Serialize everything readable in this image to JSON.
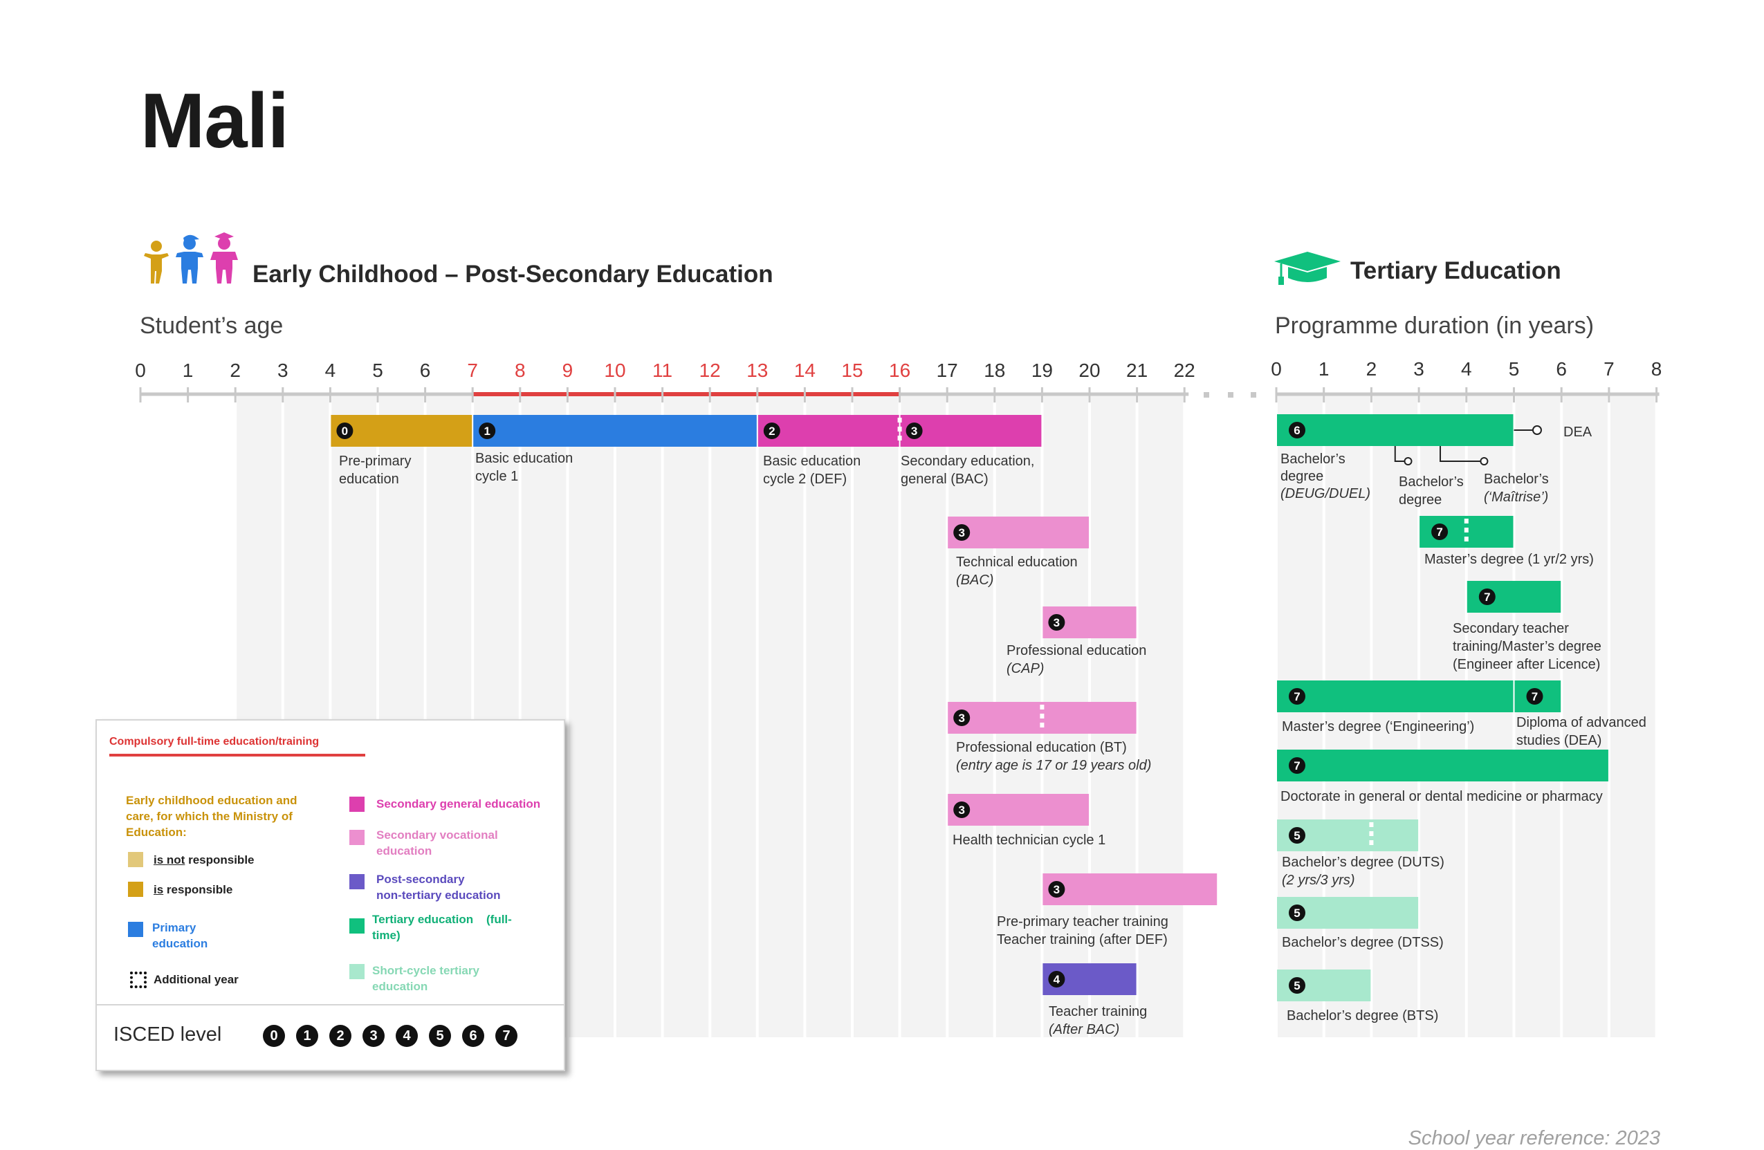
{
  "title": "Mali",
  "left_section": {
    "heading": "Early Childhood – Post-Secondary Education",
    "axis_title": "Student’s age",
    "ticks": [
      "0",
      "1",
      "2",
      "3",
      "4",
      "5",
      "6",
      "7",
      "8",
      "9",
      "10",
      "11",
      "12",
      "13",
      "14",
      "15",
      "16",
      "17",
      "18",
      "19",
      "20",
      "21",
      "22"
    ],
    "compulsory_range": [
      7,
      16
    ]
  },
  "right_section": {
    "heading": "Tertiary Education",
    "axis_title": "Programme duration (in years)",
    "ticks": [
      "0",
      "1",
      "2",
      "3",
      "4",
      "5",
      "6",
      "7",
      "8"
    ]
  },
  "colors": {
    "ecec_not_responsible": "#e2c87a",
    "ecec_responsible": "#d4a017",
    "primary": "#2b7de0",
    "secondary_general": "#dd3fae",
    "secondary_vocational": "#ec8fcf",
    "post_secondary": "#6b5ac8",
    "tertiary": "#10c07e",
    "short_cycle_tertiary": "#a8e8cd",
    "compulsory": "#e04040"
  },
  "chart_data": {
    "type": "table",
    "left_programmes": [
      {
        "id": "pre-primary",
        "isced": "0",
        "start": 4,
        "end": 7,
        "row": 0,
        "color": "ecec_responsible",
        "label": [
          "Pre-primary",
          "education"
        ]
      },
      {
        "id": "basic-cycle-1",
        "isced": "1",
        "start": 7,
        "end": 13,
        "row": 0,
        "color": "primary",
        "label": [
          "Basic education",
          "cycle 1"
        ]
      },
      {
        "id": "basic-cycle-2",
        "isced": "2",
        "start": 13,
        "end": 16,
        "row": 0,
        "color": "secondary_general",
        "label": [
          "Basic education",
          "cycle 2 (DEF)"
        ]
      },
      {
        "id": "secondary-general",
        "isced": "3",
        "start": 16,
        "end": 19,
        "row": 0,
        "color": "secondary_general",
        "label": [
          "Secondary education,",
          "general (BAC)"
        ]
      },
      {
        "id": "technical",
        "isced": "3",
        "start": 17,
        "end": 20,
        "row": 1,
        "color": "secondary_vocational",
        "label": [
          "Technical education",
          "(BAC)"
        ]
      },
      {
        "id": "professional-cap",
        "isced": "3",
        "start": 19,
        "end": 21,
        "row": 2,
        "color": "secondary_vocational",
        "label": [
          "Professional education",
          "(CAP)"
        ]
      },
      {
        "id": "professional-bt",
        "isced": "3",
        "start": 17,
        "end": 21,
        "row": 3,
        "color": "secondary_vocational",
        "additional_year_at": 19,
        "label": [
          "Professional education (BT)",
          "(entry age is 17 or 19 years old)"
        ]
      },
      {
        "id": "health-technician",
        "isced": "3",
        "start": 17,
        "end": 20,
        "row": 4,
        "color": "secondary_vocational",
        "label": [
          "Health technician cycle 1"
        ]
      },
      {
        "id": "teacher-training-def",
        "isced": "3",
        "start": 19,
        "end": 22.7,
        "row": 5,
        "color": "secondary_vocational",
        "label": [
          "Pre-primary teacher training",
          "Teacher training (after DEF)"
        ]
      },
      {
        "id": "teacher-training-bac",
        "isced": "4",
        "start": 19,
        "end": 21,
        "row": 6,
        "color": "post_secondary",
        "label": [
          "Teacher training",
          "(After BAC)"
        ]
      }
    ],
    "tertiary_programmes": [
      {
        "id": "bachelor-deug",
        "isced": "6",
        "start": 0,
        "end": 5,
        "row": 0,
        "color": "tertiary",
        "label": [
          "Bachelor’s",
          "degree",
          "(DEUG/DUEL)"
        ]
      },
      {
        "id": "masters-1-2",
        "isced": "7",
        "start": 3,
        "end": 5,
        "row": 1,
        "color": "tertiary",
        "additional_year_at": 4,
        "label": [
          "Master’s degree (1 yr/2 yrs)"
        ]
      },
      {
        "id": "secondary-teacher",
        "isced": "7",
        "start": 4,
        "end": 6,
        "row": 2,
        "color": "tertiary",
        "label": [
          "Secondary teacher",
          "training/Master’s degree",
          "(Engineer after Licence)"
        ]
      },
      {
        "id": "masters-engineering",
        "isced": "7",
        "start": 0,
        "end": 5,
        "row": 3,
        "color": "tertiary",
        "label": [
          "Master’s degree (‘Engineering’)"
        ]
      },
      {
        "id": "dea",
        "isced": "7",
        "start": 5,
        "end": 6,
        "row": 3,
        "color": "tertiary",
        "label": [
          "Diploma of advanced",
          "studies (DEA)"
        ]
      },
      {
        "id": "doctorate",
        "isced": "7",
        "start": 0,
        "end": 7,
        "row": 4,
        "color": "tertiary",
        "label": [
          "Doctorate in general or dental medicine or pharmacy"
        ]
      },
      {
        "id": "bachelor-duts",
        "isced": "5",
        "start": 0,
        "end": 3,
        "row": 5,
        "color": "short_cycle_tertiary",
        "additional_year_at": 2,
        "label": [
          "Bachelor’s degree (DUTS)",
          "(2 yrs/3 yrs)"
        ]
      },
      {
        "id": "bachelor-dtss",
        "isced": "5",
        "start": 0,
        "end": 3,
        "row": 6,
        "color": "short_cycle_tertiary",
        "label": [
          "Bachelor’s degree (DTSS)"
        ]
      },
      {
        "id": "bachelor-bts",
        "isced": "5",
        "start": 0,
        "end": 2,
        "row": 7,
        "color": "short_cycle_tertiary",
        "label": [
          "Bachelor’s degree (BTS)"
        ]
      }
    ],
    "tertiary_exit_points": [
      {
        "at": 5,
        "label": "DEA"
      },
      {
        "at": 2.5,
        "label": [
          "Bachelor’s",
          "degree"
        ]
      },
      {
        "at": 4.5,
        "label": [
          "Bachelor’s",
          "(‘Maîtrise’)"
        ]
      }
    ]
  },
  "legend": {
    "compulsory": "Compulsory full-time education/training",
    "ecec_heading": [
      "Early childhood education and",
      "care, for which the  Ministry of",
      "Education:"
    ],
    "is_not": "is not",
    "is_not_rest": "responsible",
    "is": "is",
    "is_rest": "responsible",
    "primary": [
      "Primary",
      "education"
    ],
    "additional_year": "Additional year",
    "secondary_general": "Secondary general education",
    "secondary_vocational": [
      "Secondary vocational",
      "education"
    ],
    "post_secondary": [
      "Post-secondary",
      "non-tertiary education"
    ],
    "tertiary": [
      "Tertiary education    (full-",
      "time)"
    ],
    "short_cycle": [
      "Short-cycle tertiary",
      "education"
    ],
    "isced_title": "ISCED level",
    "isced_levels": [
      "0",
      "1",
      "2",
      "3",
      "4",
      "5",
      "6",
      "7"
    ]
  },
  "footnote": "School year reference: 2023"
}
